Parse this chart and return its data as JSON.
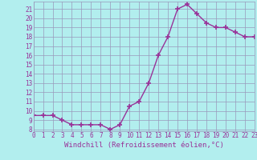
{
  "x": [
    0,
    1,
    2,
    3,
    4,
    5,
    6,
    7,
    8,
    9,
    10,
    11,
    12,
    13,
    14,
    15,
    16,
    17,
    18,
    19,
    20,
    21,
    22,
    23
  ],
  "y": [
    9.5,
    9.5,
    9.5,
    9.0,
    8.5,
    8.5,
    8.5,
    8.5,
    8.0,
    8.5,
    10.5,
    11.0,
    13.0,
    16.0,
    18.0,
    21.0,
    21.5,
    20.5,
    19.5,
    19.0,
    19.0,
    18.5,
    18.0,
    18.0
  ],
  "xlim": [
    0,
    23
  ],
  "ylim": [
    7.8,
    21.8
  ],
  "yticks": [
    8,
    9,
    10,
    11,
    12,
    13,
    14,
    15,
    16,
    17,
    18,
    19,
    20,
    21
  ],
  "xticks": [
    0,
    1,
    2,
    3,
    4,
    5,
    6,
    7,
    8,
    9,
    10,
    11,
    12,
    13,
    14,
    15,
    16,
    17,
    18,
    19,
    20,
    21,
    22,
    23
  ],
  "xlabel": "Windchill (Refroidissement éolien,°C)",
  "line_color": "#993399",
  "marker": "+",
  "marker_size": 4,
  "linewidth": 1.0,
  "bg_color": "#b2eeee",
  "grid_color": "#9999bb",
  "tick_color": "#993399",
  "label_color": "#993399",
  "tick_fontsize": 5.5,
  "xlabel_fontsize": 6.5
}
